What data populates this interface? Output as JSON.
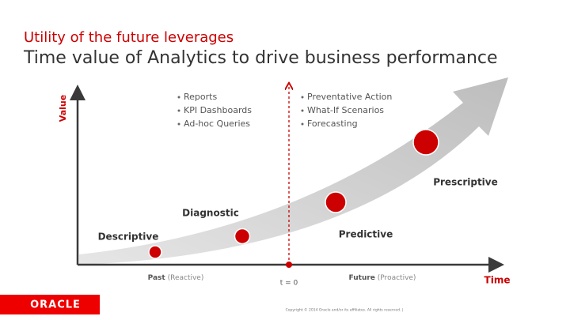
{
  "header": {
    "title": "Utility of the future leverages",
    "subtitle": "Time value of Analytics to drive business performance"
  },
  "axes": {
    "y_label": "Value",
    "x_label": "Time"
  },
  "stages": [
    {
      "label": "Descriptive"
    },
    {
      "label": "Diagnostic"
    },
    {
      "label": "Predictive"
    },
    {
      "label": "Prescriptive"
    }
  ],
  "bullets_past": [
    "Reports",
    "KPI Dashboards",
    "Ad-hoc Queries"
  ],
  "bullets_future": [
    "Preventative Action",
    "What-If Scenarios",
    "Forecasting"
  ],
  "timeline": {
    "past": "Past",
    "past_note": "(Reactive)",
    "now": "t = 0",
    "future": "Future",
    "future_note": "(Proactive)"
  },
  "footer": {
    "logo": "ORACLE",
    "copyright": "Copyright © 2014 Oracle and/or its affiliates. All rights reserved.  |"
  }
}
